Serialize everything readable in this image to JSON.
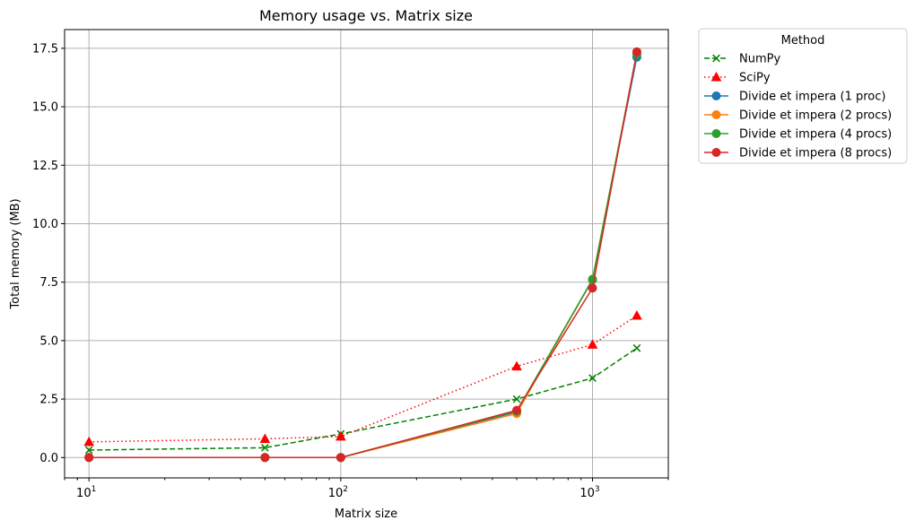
{
  "chart_data": {
    "type": "line",
    "title": "Memory usage vs. Matrix size",
    "xlabel": "Matrix size",
    "ylabel": "Total memory (MB)",
    "xscale": "log",
    "xlim": [
      8,
      2000
    ],
    "ylim": [
      -0.87,
      18.3
    ],
    "x_ticks": [
      10,
      100,
      1000
    ],
    "x_tick_labels": [
      {
        "base": "10",
        "exp": "1"
      },
      {
        "base": "10",
        "exp": "2"
      },
      {
        "base": "10",
        "exp": "3"
      }
    ],
    "y_ticks": [
      0.0,
      2.5,
      5.0,
      7.5,
      10.0,
      12.5,
      15.0,
      17.5
    ],
    "y_tick_labels": [
      "0.0",
      "2.5",
      "5.0",
      "7.5",
      "10.0",
      "12.5",
      "15.0",
      "17.5"
    ],
    "grid": true,
    "legend": {
      "title": "Method",
      "placement": "outside-top-right"
    },
    "x": [
      10,
      50,
      100,
      500,
      1000,
      1500
    ],
    "series": [
      {
        "name": "NumPy",
        "color": "#008000",
        "dash": "dashed",
        "marker": "x",
        "values": [
          0.32,
          0.42,
          1.01,
          2.5,
          3.4,
          4.68
        ]
      },
      {
        "name": "SciPy",
        "color": "#ff0000",
        "dash": "dotted",
        "marker": "triangle",
        "values": [
          0.67,
          0.8,
          0.9,
          3.9,
          4.83,
          6.07
        ]
      },
      {
        "name": "Divide et impera (1 proc)",
        "color": "#1f77b4",
        "dash": "solid",
        "marker": "circle",
        "values": [
          0.0,
          0.0,
          0.0,
          1.95,
          7.6,
          17.12
        ]
      },
      {
        "name": "Divide et impera (2 procs)",
        "color": "#ff7f0e",
        "dash": "solid",
        "marker": "circle",
        "values": [
          0.0,
          0.0,
          0.0,
          1.88,
          7.62,
          17.3
        ]
      },
      {
        "name": "Divide et impera (4 procs)",
        "color": "#2ca02c",
        "dash": "solid",
        "marker": "circle",
        "values": [
          0.0,
          0.0,
          0.0,
          1.98,
          7.62,
          17.25
        ]
      },
      {
        "name": "Divide et impera (8 procs)",
        "color": "#d62728",
        "dash": "solid",
        "marker": "circle",
        "values": [
          0.0,
          0.0,
          0.0,
          2.02,
          7.25,
          17.35
        ]
      }
    ]
  }
}
